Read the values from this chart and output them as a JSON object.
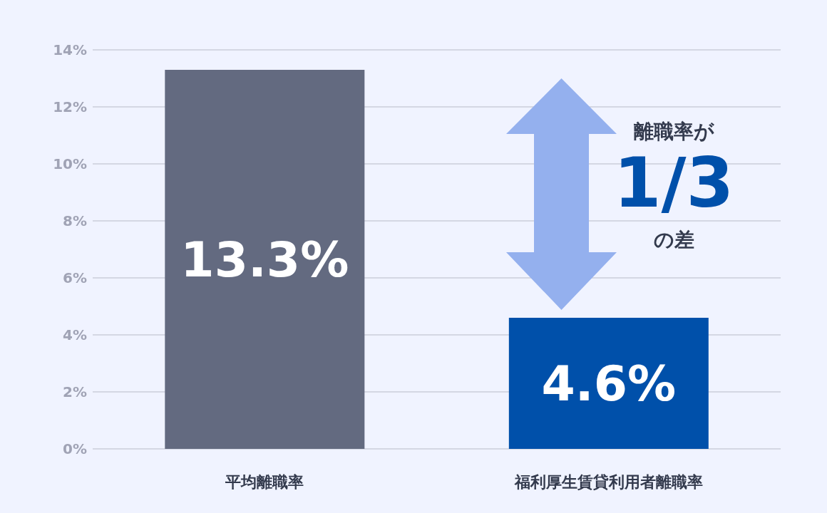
{
  "chart_data": {
    "type": "bar",
    "categories": [
      "平均離職率",
      "福利厚生賃貸利用者離職率"
    ],
    "values": [
      13.3,
      4.6
    ],
    "colors": [
      "#636a80",
      "#0050aa"
    ],
    "value_labels": [
      "13.3%",
      "4.6%"
    ],
    "ylim": [
      0,
      14
    ],
    "yticks": [
      {
        "value": 0,
        "label": "0%"
      },
      {
        "value": 2,
        "label": "2%"
      },
      {
        "value": 4,
        "label": "4%"
      },
      {
        "value": 6,
        "label": "6%"
      },
      {
        "value": 8,
        "label": "8%"
      },
      {
        "value": 10,
        "label": "10%"
      },
      {
        "value": 12,
        "label": "12%"
      },
      {
        "value": 14,
        "label": "14%"
      }
    ],
    "grid": "y",
    "legend": false,
    "annotations": [
      "離職率が",
      "1/3",
      "の差"
    ]
  }
}
